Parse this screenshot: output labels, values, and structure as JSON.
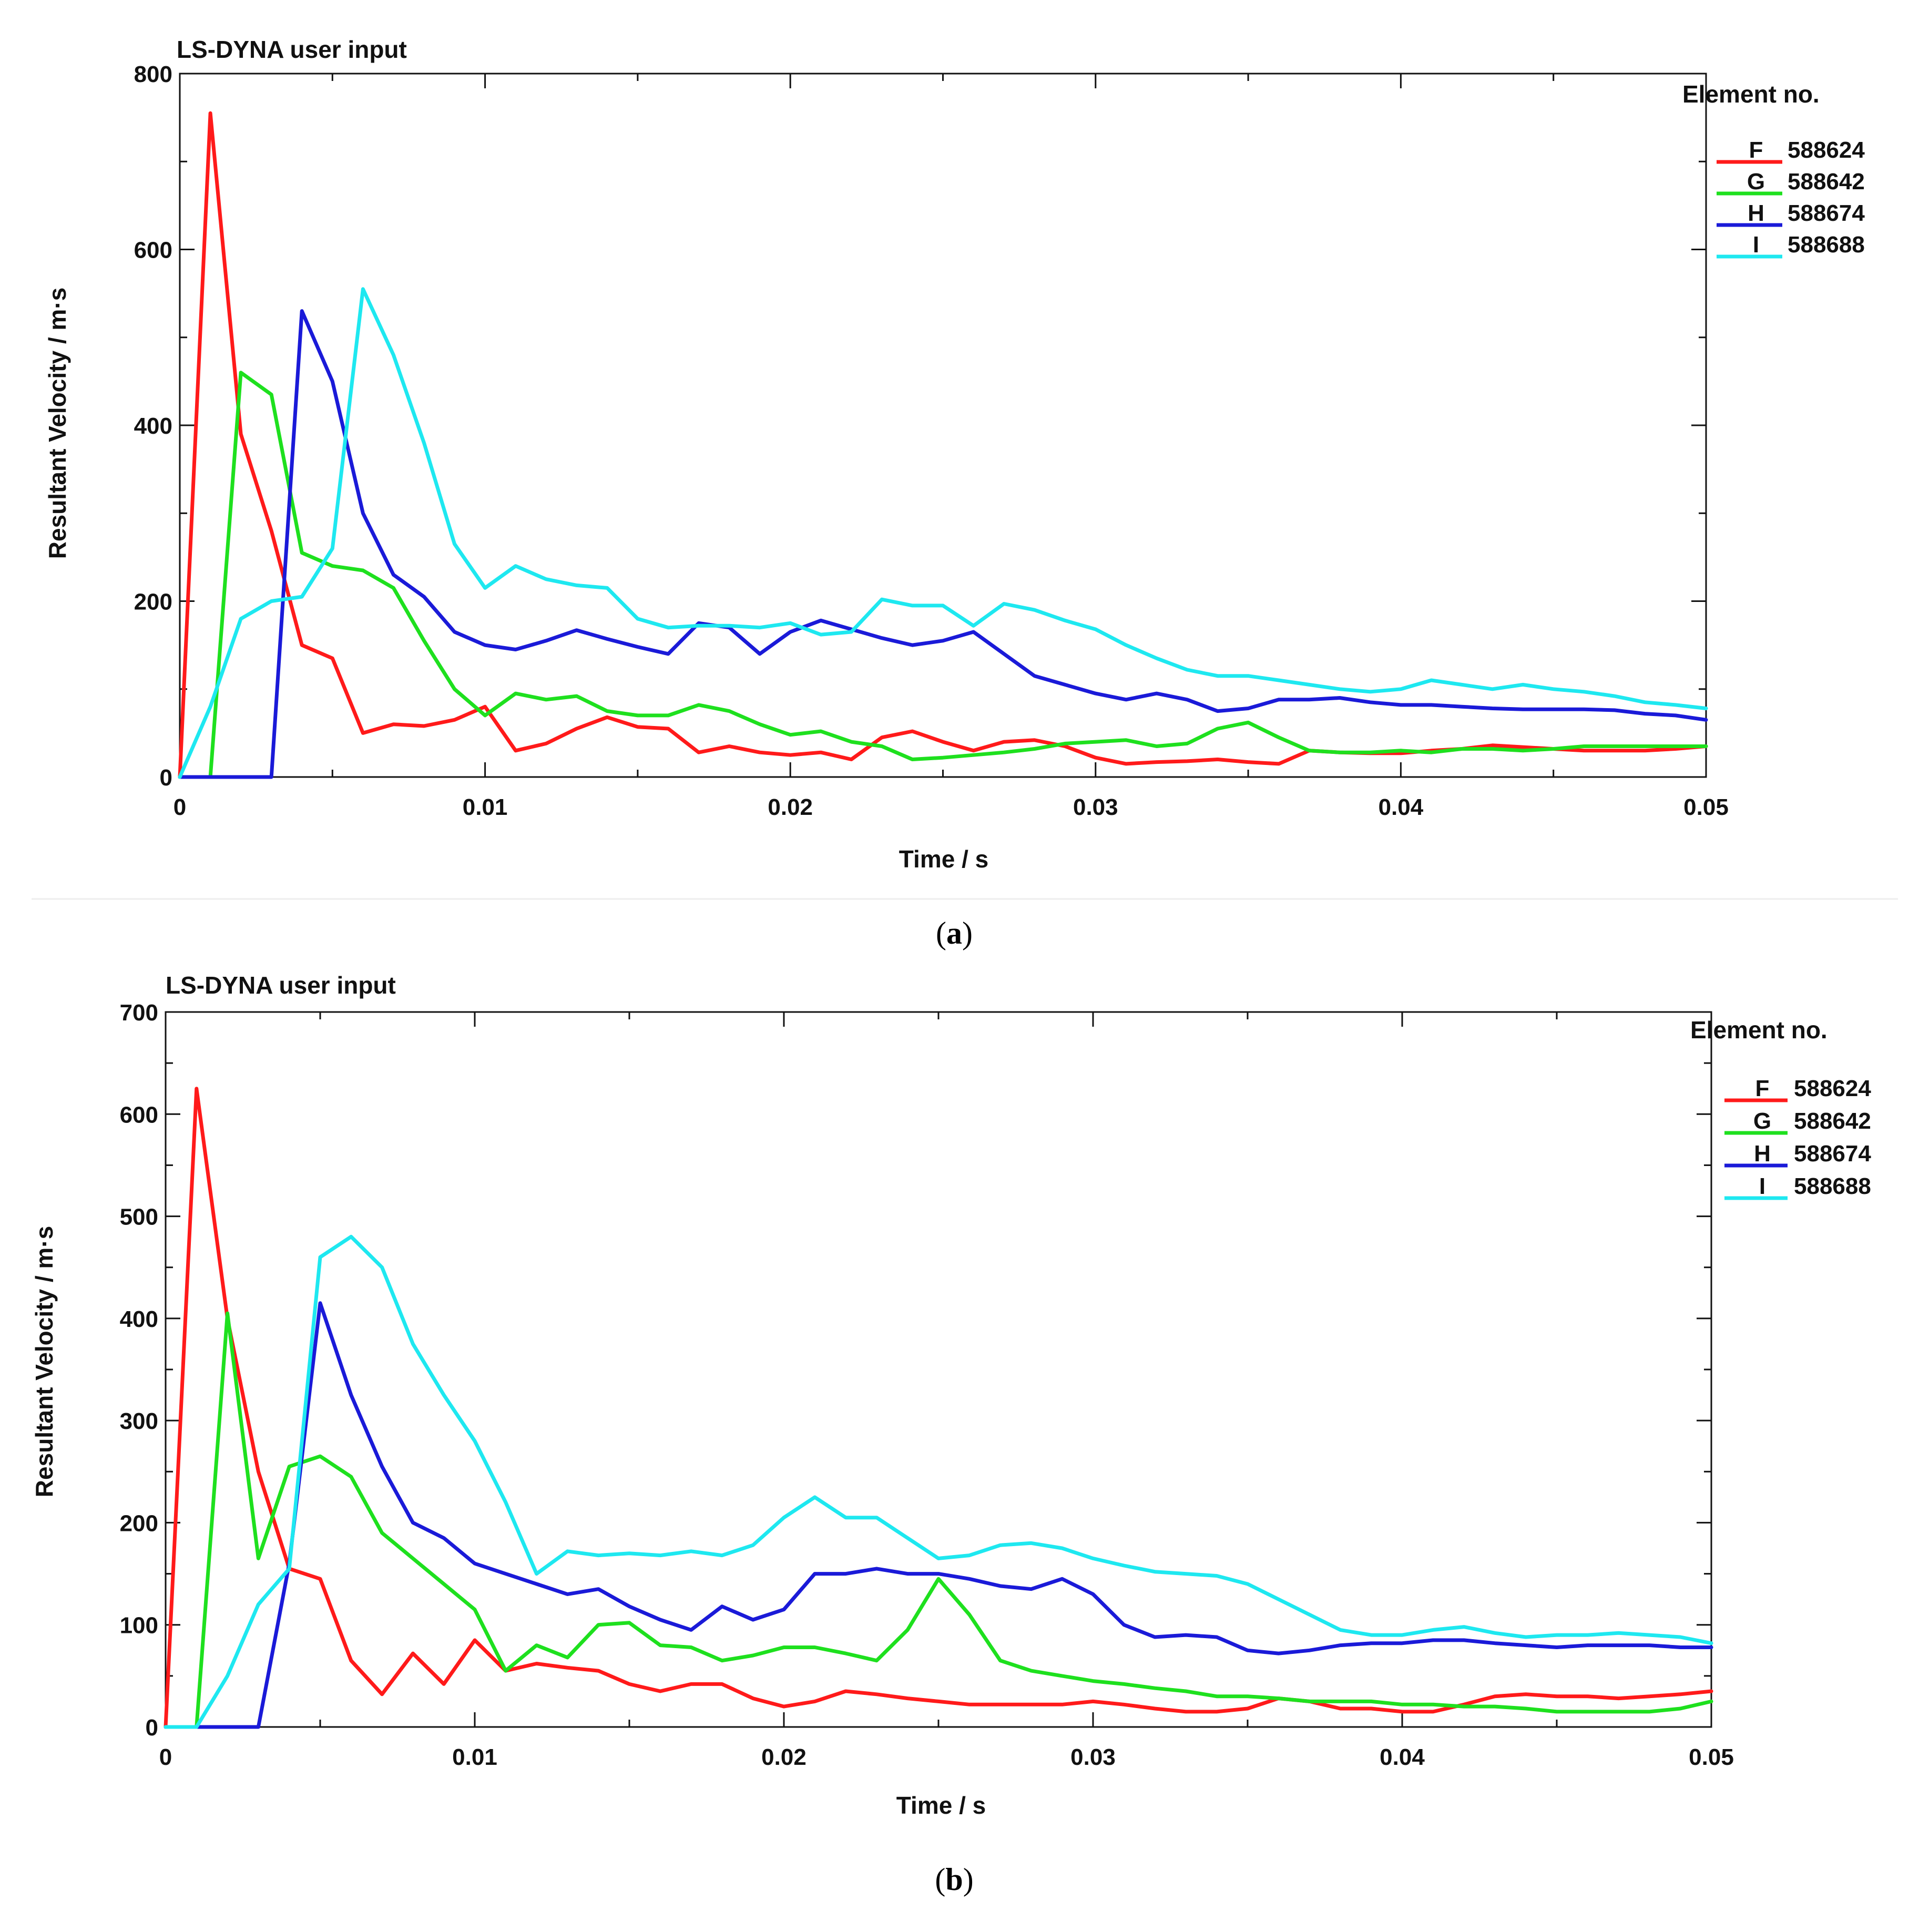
{
  "figure": {
    "captions": [
      "(a)",
      "(b)"
    ],
    "caption_parts": [
      {
        "open": "(",
        "letter": "a",
        "close": ")"
      },
      {
        "open": "(",
        "letter": "b",
        "close": ")"
      }
    ]
  },
  "colors": {
    "F": "#ff1a1a",
    "G": "#1ee01e",
    "H": "#1a1ad8",
    "I": "#1ee8f0"
  },
  "chart_data": [
    {
      "type": "line",
      "title": "LS-DYNA user input",
      "xlabel": "Time / s",
      "ylabel": "Resultant Velocity / m·s",
      "xlim": [
        0,
        0.05
      ],
      "ylim": [
        0,
        800
      ],
      "xticks": [
        0,
        0.01,
        0.02,
        0.03,
        0.04,
        0.05
      ],
      "xtick_labels": [
        "0",
        "0.01",
        "0.02",
        "0.03",
        "0.04",
        "0.05"
      ],
      "yticks": [
        0,
        200,
        400,
        600,
        800
      ],
      "ytick_labels": [
        "0",
        "200",
        "400",
        "600",
        "800"
      ],
      "legend_title": "Element no.",
      "legend_position": "right",
      "x": [
        0,
        0.001,
        0.002,
        0.003,
        0.004,
        0.005,
        0.006,
        0.007,
        0.008,
        0.009,
        0.01,
        0.011,
        0.012,
        0.013,
        0.014,
        0.015,
        0.016,
        0.017,
        0.018,
        0.019,
        0.02,
        0.021,
        0.022,
        0.023,
        0.024,
        0.025,
        0.026,
        0.027,
        0.028,
        0.029,
        0.03,
        0.031,
        0.032,
        0.033,
        0.034,
        0.035,
        0.036,
        0.037,
        0.038,
        0.039,
        0.04,
        0.041,
        0.042,
        0.043,
        0.044,
        0.045,
        0.046,
        0.047,
        0.048,
        0.049,
        0.05
      ],
      "series": [
        {
          "key": "F",
          "label": "F",
          "element": "588624",
          "values": [
            0,
            755,
            390,
            280,
            150,
            135,
            50,
            60,
            58,
            65,
            80,
            30,
            38,
            55,
            68,
            57,
            55,
            28,
            35,
            28,
            25,
            28,
            20,
            45,
            52,
            40,
            30,
            40,
            42,
            35,
            22,
            15,
            17,
            18,
            20,
            17,
            15,
            30,
            28,
            27,
            27,
            30,
            32,
            36,
            34,
            32,
            30,
            30,
            30,
            32,
            35
          ]
        },
        {
          "key": "G",
          "label": "G",
          "element": "588642",
          "values": [
            0,
            0,
            460,
            435,
            255,
            240,
            235,
            215,
            155,
            100,
            70,
            95,
            88,
            92,
            75,
            70,
            70,
            82,
            75,
            60,
            48,
            52,
            40,
            35,
            20,
            22,
            25,
            28,
            32,
            38,
            40,
            42,
            35,
            38,
            55,
            62,
            45,
            30,
            28,
            28,
            30,
            28,
            32,
            32,
            30,
            32,
            35,
            35,
            35,
            35,
            35
          ]
        },
        {
          "key": "H",
          "label": "H",
          "element": "588674",
          "values": [
            0,
            0,
            0,
            0,
            530,
            450,
            300,
            230,
            205,
            165,
            150,
            145,
            155,
            167,
            157,
            148,
            140,
            175,
            170,
            140,
            165,
            178,
            168,
            158,
            150,
            155,
            165,
            140,
            115,
            105,
            95,
            88,
            95,
            88,
            75,
            78,
            88,
            88,
            90,
            85,
            82,
            82,
            80,
            78,
            77,
            77,
            77,
            76,
            72,
            70,
            65
          ]
        },
        {
          "key": "I",
          "label": "I",
          "element": "588688",
          "values": [
            0,
            80,
            180,
            200,
            205,
            260,
            555,
            480,
            380,
            265,
            215,
            240,
            225,
            218,
            215,
            180,
            170,
            172,
            172,
            170,
            175,
            162,
            165,
            202,
            195,
            195,
            172,
            197,
            190,
            178,
            168,
            150,
            135,
            122,
            115,
            115,
            110,
            105,
            100,
            97,
            100,
            110,
            105,
            100,
            105,
            100,
            97,
            92,
            85,
            82,
            78
          ]
        }
      ]
    },
    {
      "type": "line",
      "title": "LS-DYNA user input",
      "xlabel": "Time / s",
      "ylabel": "Resultant Velocity / m·s",
      "xlim": [
        0,
        0.05
      ],
      "ylim": [
        0,
        700
      ],
      "xticks": [
        0,
        0.01,
        0.02,
        0.03,
        0.04,
        0.05
      ],
      "xtick_labels": [
        "0",
        "0.01",
        "0.02",
        "0.03",
        "0.04",
        "0.05"
      ],
      "yticks": [
        0,
        100,
        200,
        300,
        400,
        500,
        600,
        700
      ],
      "ytick_labels": [
        "0",
        "100",
        "200",
        "300",
        "400",
        "500",
        "600",
        "700"
      ],
      "legend_title": "Element no.",
      "legend_position": "right",
      "x": [
        0,
        0.001,
        0.002,
        0.003,
        0.004,
        0.005,
        0.006,
        0.007,
        0.008,
        0.009,
        0.01,
        0.011,
        0.012,
        0.013,
        0.014,
        0.015,
        0.016,
        0.017,
        0.018,
        0.019,
        0.02,
        0.021,
        0.022,
        0.023,
        0.024,
        0.025,
        0.026,
        0.027,
        0.028,
        0.029,
        0.03,
        0.031,
        0.032,
        0.033,
        0.034,
        0.035,
        0.036,
        0.037,
        0.038,
        0.039,
        0.04,
        0.041,
        0.042,
        0.043,
        0.044,
        0.045,
        0.046,
        0.047,
        0.048,
        0.049,
        0.05
      ],
      "series": [
        {
          "key": "F",
          "label": "F",
          "element": "588624",
          "values": [
            0,
            625,
            400,
            250,
            155,
            145,
            65,
            32,
            72,
            42,
            85,
            55,
            62,
            58,
            55,
            42,
            35,
            42,
            42,
            28,
            20,
            25,
            35,
            32,
            28,
            25,
            22,
            22,
            22,
            22,
            25,
            22,
            18,
            15,
            15,
            18,
            28,
            25,
            18,
            18,
            15,
            15,
            22,
            30,
            32,
            30,
            30,
            28,
            30,
            32,
            35
          ]
        },
        {
          "key": "G",
          "label": "G",
          "element": "588642",
          "values": [
            0,
            0,
            405,
            165,
            255,
            265,
            245,
            190,
            165,
            140,
            115,
            55,
            80,
            68,
            100,
            102,
            80,
            78,
            65,
            70,
            78,
            78,
            72,
            65,
            95,
            145,
            110,
            65,
            55,
            50,
            45,
            42,
            38,
            35,
            30,
            30,
            28,
            25,
            25,
            25,
            22,
            22,
            20,
            20,
            18,
            15,
            15,
            15,
            15,
            18,
            25
          ]
        },
        {
          "key": "H",
          "label": "H",
          "element": "588674",
          "values": [
            0,
            0,
            0,
            0,
            160,
            415,
            325,
            255,
            200,
            185,
            160,
            150,
            140,
            130,
            135,
            118,
            105,
            95,
            118,
            105,
            115,
            150,
            150,
            155,
            150,
            150,
            145,
            138,
            135,
            145,
            130,
            100,
            88,
            90,
            88,
            75,
            72,
            75,
            80,
            82,
            82,
            85,
            85,
            82,
            80,
            78,
            80,
            80,
            80,
            78,
            78
          ]
        },
        {
          "key": "I",
          "label": "I",
          "element": "588688",
          "values": [
            0,
            0,
            50,
            120,
            155,
            460,
            480,
            450,
            375,
            325,
            280,
            220,
            150,
            172,
            168,
            170,
            168,
            172,
            168,
            178,
            205,
            225,
            205,
            205,
            185,
            165,
            168,
            178,
            180,
            175,
            165,
            158,
            152,
            150,
            148,
            140,
            125,
            110,
            95,
            90,
            90,
            95,
            98,
            92,
            88,
            90,
            90,
            92,
            90,
            88,
            82
          ]
        }
      ]
    }
  ]
}
